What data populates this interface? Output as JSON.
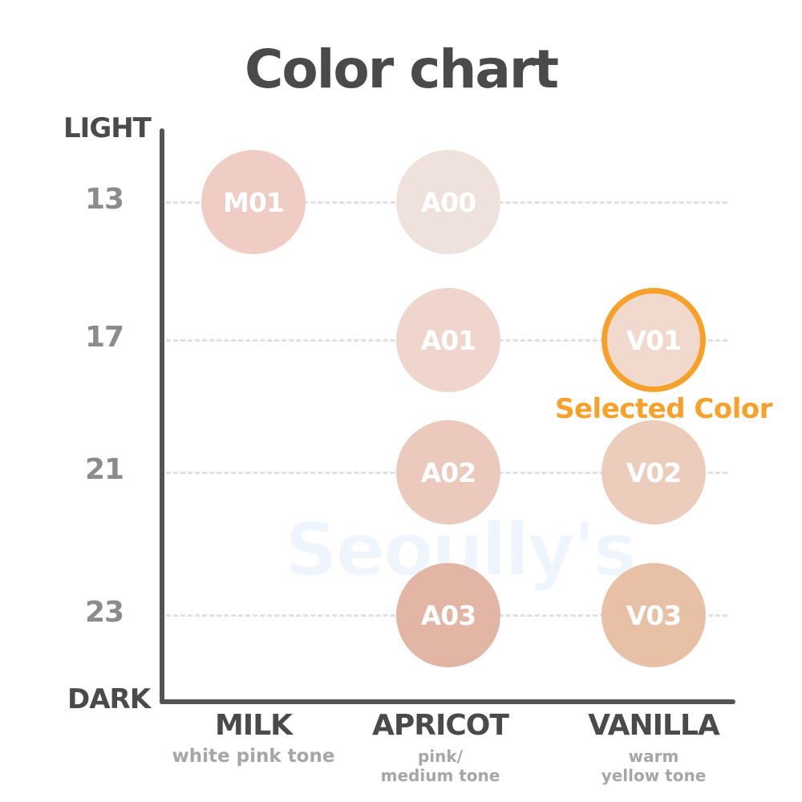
{
  "chart_data": {
    "type": "scatter",
    "title": "Color chart",
    "y_axis": {
      "top_label": "LIGHT",
      "bottom_label": "DARK",
      "ticks": [
        13,
        17,
        21,
        23
      ],
      "grid": "dashed"
    },
    "categories": [
      {
        "name": "MILK",
        "tone_lines": [
          "white pink tone"
        ]
      },
      {
        "name": "APRICOT",
        "tone_lines": [
          "pink/",
          "medium tone"
        ]
      },
      {
        "name": "VANILLA",
        "tone_lines": [
          "warm",
          "yellow tone"
        ]
      }
    ],
    "points": [
      {
        "code": "M01",
        "category": "MILK",
        "level": 13,
        "color": "#efcdc4"
      },
      {
        "code": "A00",
        "category": "APRICOT",
        "level": 13,
        "color": "#efe2dc"
      },
      {
        "code": "A01",
        "category": "APRICOT",
        "level": 17,
        "color": "#efd5cb"
      },
      {
        "code": "A02",
        "category": "APRICOT",
        "level": 21,
        "color": "#ecc9bd"
      },
      {
        "code": "A03",
        "category": "APRICOT",
        "level": 23,
        "color": "#e2b5a4"
      },
      {
        "code": "V01",
        "category": "VANILLA",
        "level": 17,
        "color": "#f2d9ce"
      },
      {
        "code": "V02",
        "category": "VANILLA",
        "level": 21,
        "color": "#eccdbb"
      },
      {
        "code": "V03",
        "category": "VANILLA",
        "level": 23,
        "color": "#e7c0a6"
      }
    ],
    "selected": {
      "code": "V01",
      "label": "Selected Color",
      "highlight_color": "#f7a12a"
    },
    "watermark": "Seoully's"
  }
}
